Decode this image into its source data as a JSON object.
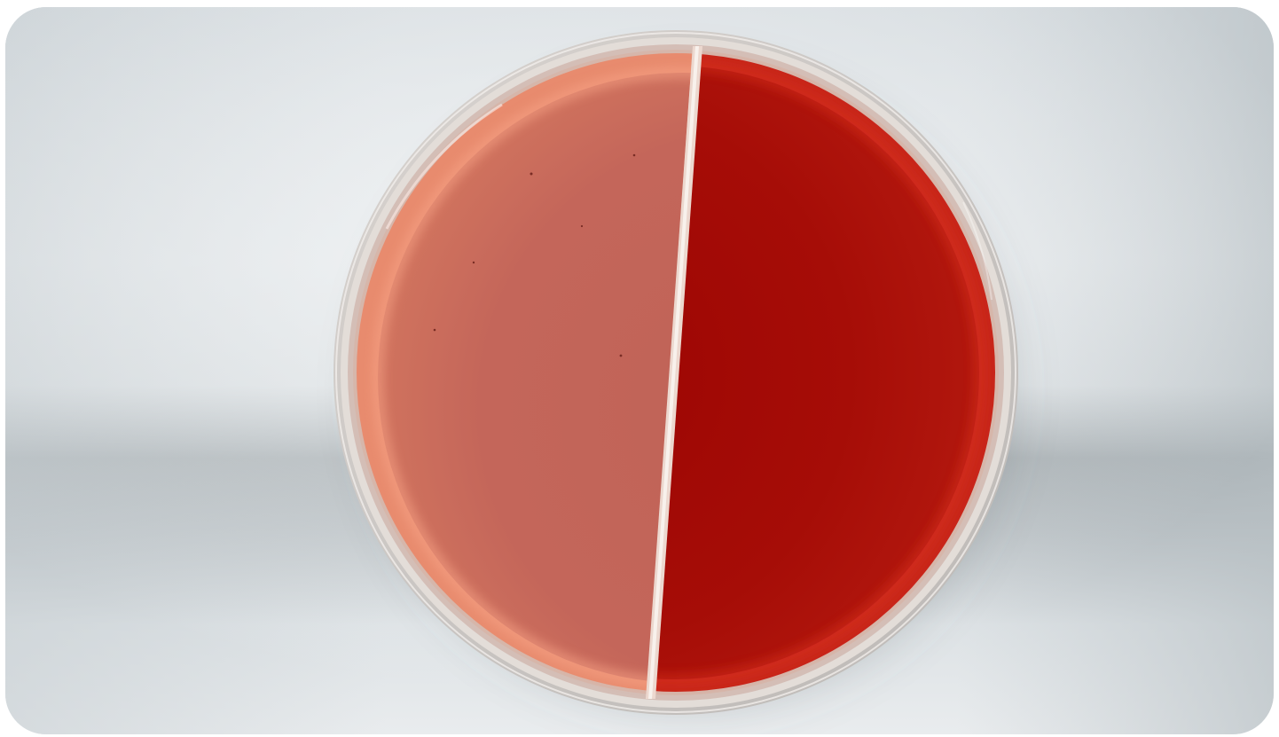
{
  "photo": {
    "subject": "split-petri-dish",
    "background_colors": {
      "light": "#e6e9ec",
      "mid": "#c5ccd0",
      "shadow": "#8c9498"
    },
    "dish": {
      "rim_color": "#cfcfcc",
      "left_half_color": "#c4665a",
      "left_half_edge_color": "#f3977a",
      "right_half_color": "#a60d07",
      "right_half_edge_color": "#d1291c",
      "divider_color": "#ecd8cf"
    }
  }
}
